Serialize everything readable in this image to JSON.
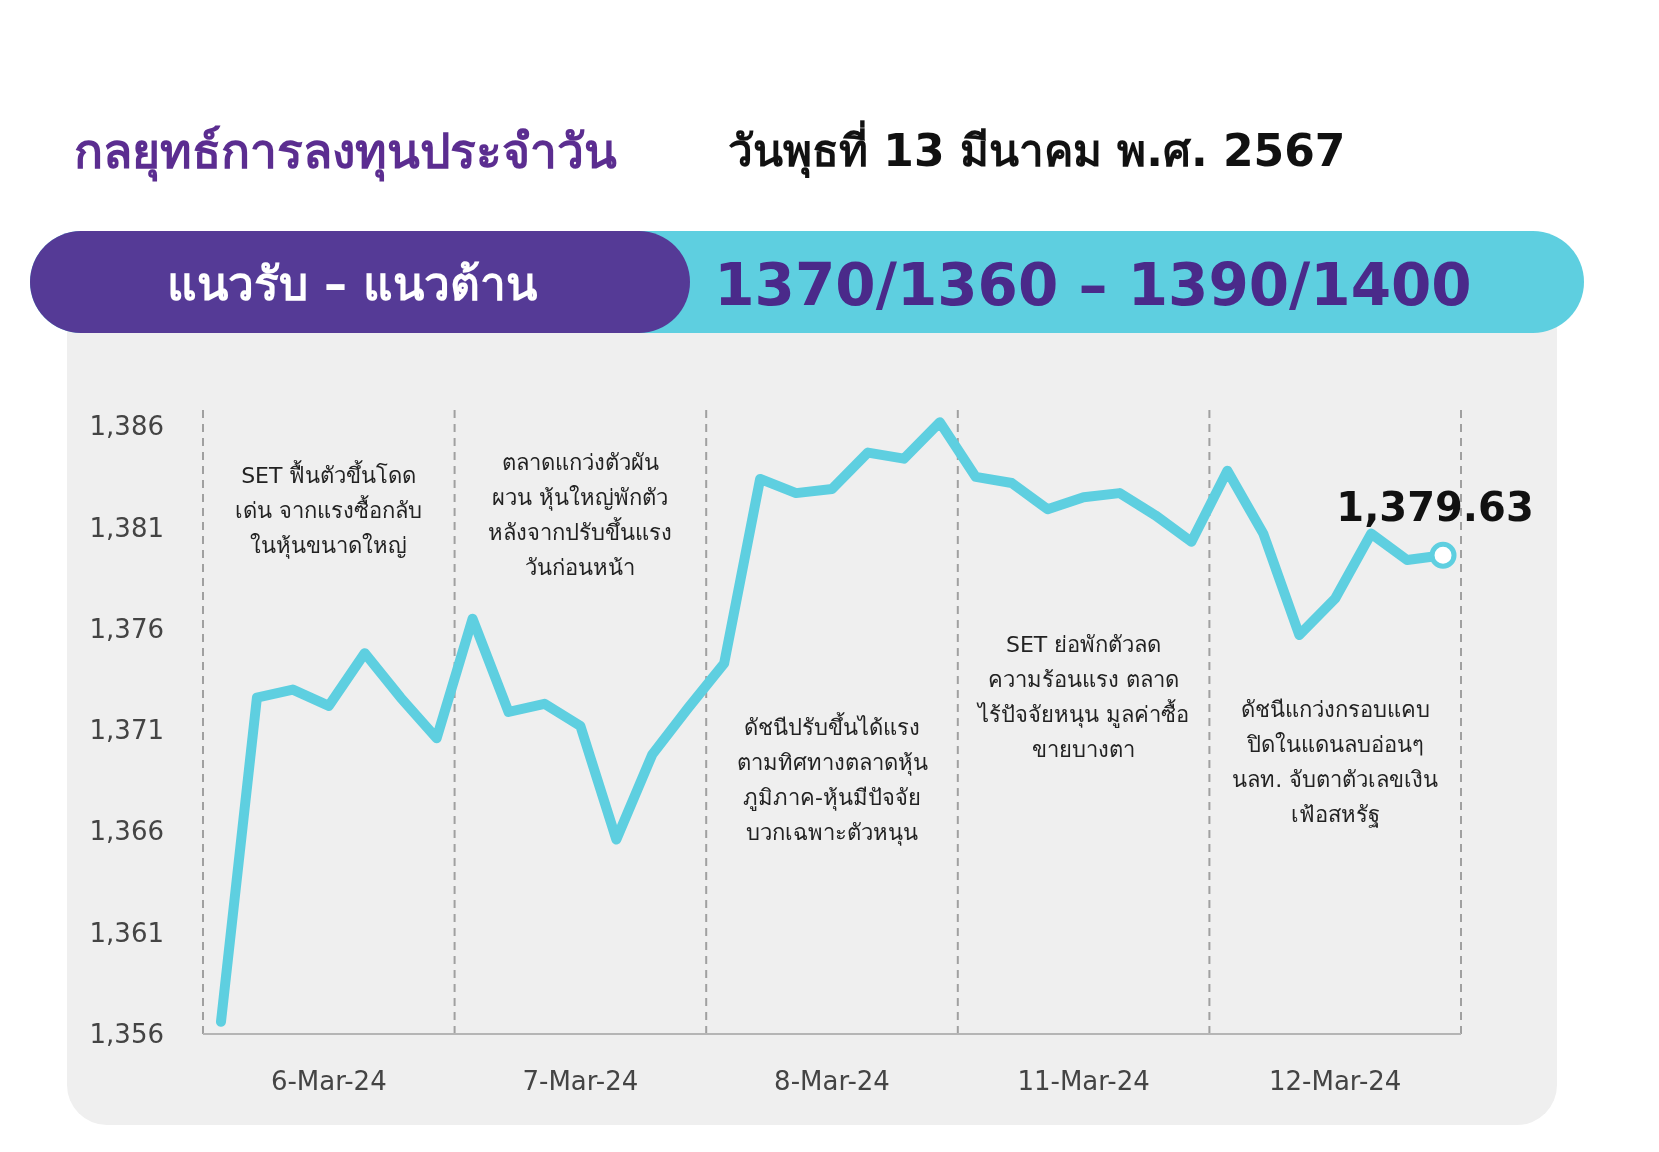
{
  "chart_data": {
    "type": "line",
    "title": "กลยุทธ์การลงทุนประจำวัน",
    "subtitle": "วันพุธที่ 13 มีนาคม พ.ศ. 2567",
    "annotations": [
      "แนวรับ – แนวต้าน",
      "1370/1360 – 1390/1400",
      "SET ฟื้นตัวขึ้นโดด\nเด่น จากแรงซื้อกลับ\nในหุ้นขนาดใหญ่",
      "ตลาดแกว่งตัวผัน\nผวน หุ้นใหญ่พักตัว\nหลังจากปรับขึ้นแรง\nวันก่อนหน้า",
      "ดัชนีปรับขึ้นได้แรง\nตามทิศทางตลาดหุ้น\nภูมิภาค-หุ้นมีปัจจัย\nบวกเฉพาะตัวหนุน",
      "SET ย่อพักตัวลด\nความร้อนแรง ตลาด\nไร้ปัจจัยหนุน มูลค่าซื้อ\nขายบางตา",
      "ดัชนีแกว่งกรอบแคบ\nปิดในแดนลบอ่อนๆ\nนลท. จับตาตัวเลขเงิน\nเฟ้อสหรัฐ"
    ],
    "categories": [
      null,
      null,
      null,
      "6-Mar-24",
      null,
      null,
      null,
      null,
      null,
      null,
      "7-Mar-24",
      null,
      null,
      null,
      null,
      null,
      null,
      "8-Mar-24",
      null,
      null,
      null,
      null,
      null,
      null,
      "11-Mar-24",
      null,
      null,
      null,
      null,
      null,
      null,
      "12-Mar-24",
      null,
      null,
      null
    ],
    "ylim": [
      1356,
      1387
    ],
    "yticks": [
      {
        "value": 1356,
        "label": "1,356"
      },
      {
        "value": 1361,
        "label": "1,361"
      },
      {
        "value": 1366,
        "label": "1,366"
      },
      {
        "value": 1371,
        "label": "1,371"
      },
      {
        "value": 1376,
        "label": "1,376"
      },
      {
        "value": 1381,
        "label": "1,381"
      },
      {
        "value": 1386,
        "label": "1,386"
      }
    ],
    "grid": "x",
    "series": [
      {
        "color": "#5ecfe0",
        "values": [
          1356.6,
          1372.6,
          1373.0,
          1372.2,
          1374.8,
          1372.6,
          1370.6,
          1376.5,
          1371.9,
          1372.3,
          1371.2,
          1365.6,
          1369.8,
          1372.1,
          1374.3,
          1383.4,
          1382.7,
          1382.9,
          1384.7,
          1384.4,
          1386.2,
          1383.5,
          1383.2,
          1381.9,
          1382.5,
          1382.7,
          1381.6,
          1380.3,
          1383.8,
          1380.7,
          1375.7,
          1377.5,
          1380.7,
          1379.4,
          1379.63
        ]
      },
      {
        "type": "scatter",
        "color": "#5ecfe0",
        "marker": "circle",
        "values": [
          null,
          null,
          null,
          null,
          null,
          null,
          null,
          null,
          null,
          null,
          null,
          null,
          null,
          null,
          null,
          null,
          null,
          null,
          null,
          null,
          null,
          null,
          null,
          null,
          null,
          null,
          null,
          null,
          null,
          null,
          null,
          null,
          null,
          null,
          1379.63
        ],
        "value_labels": [
          null,
          null,
          null,
          null,
          null,
          null,
          null,
          null,
          null,
          null,
          null,
          null,
          null,
          null,
          null,
          null,
          null,
          null,
          null,
          null,
          null,
          null,
          null,
          null,
          null,
          null,
          null,
          null,
          null,
          null,
          null,
          null,
          null,
          null,
          "1,379.63"
        ]
      }
    ]
  }
}
